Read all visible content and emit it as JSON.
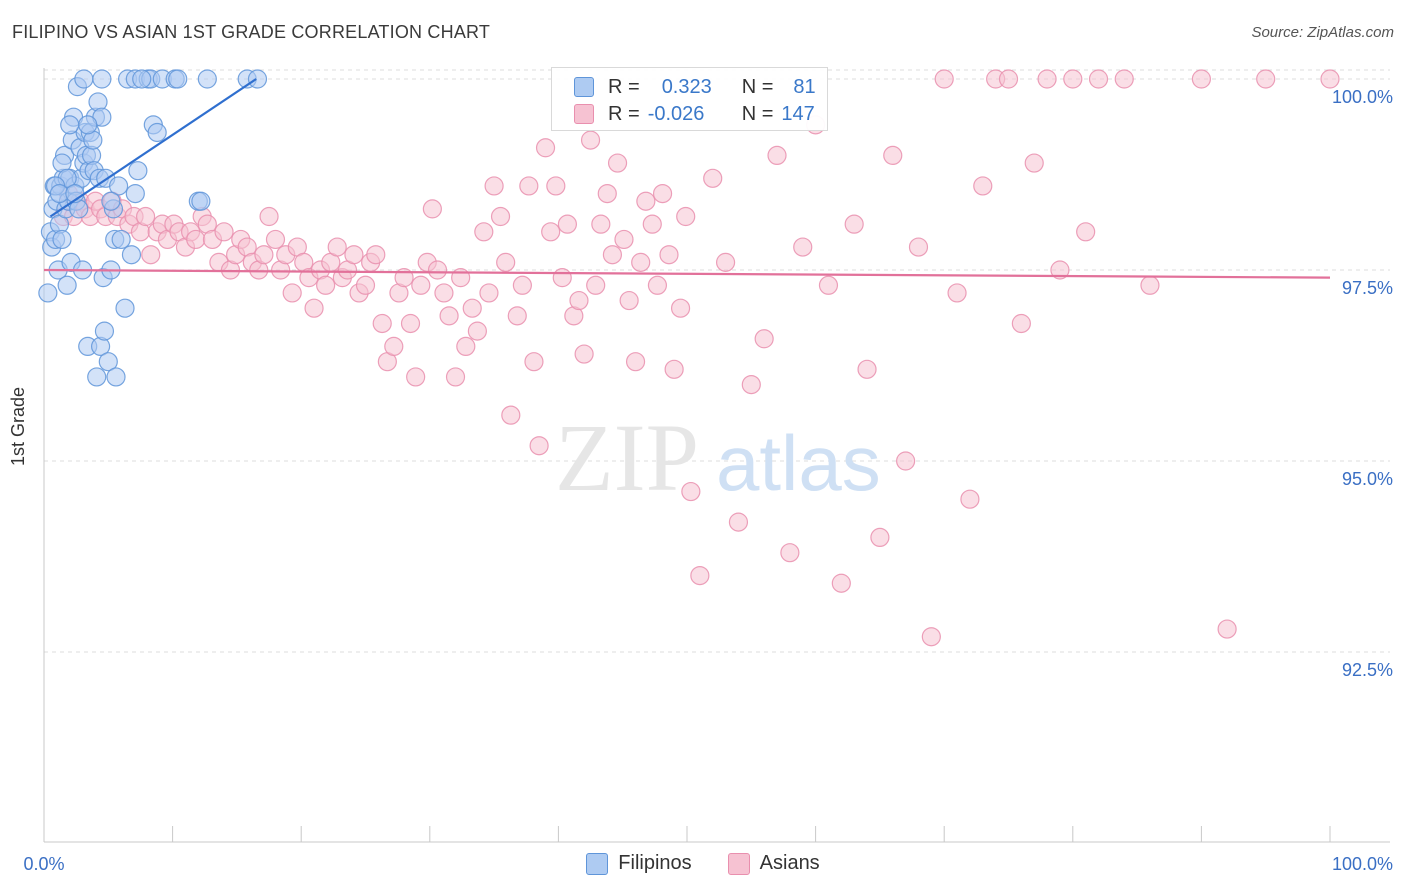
{
  "title": "FILIPINO VS ASIAN 1ST GRADE CORRELATION CHART",
  "source": "Source: ZipAtlas.com",
  "watermark": {
    "zip": "ZIP",
    "atlas": "atlas"
  },
  "legend": {
    "filipino": {
      "r_label": "R =",
      "r_value": "0.323",
      "n_label": "N =",
      "n_value": "81"
    },
    "asian": {
      "r_label": "R =",
      "r_value": "-0.026",
      "n_label": "N =",
      "n_value": "147"
    }
  },
  "bottom_legend": {
    "filipinos": "Filipinos",
    "asians": "Asians"
  },
  "colors": {
    "filipino_fill": "#aecbf2",
    "filipino_stroke": "#5f95d9",
    "filipino_line": "#2f6fcf",
    "asian_fill": "#f6c2d2",
    "asian_stroke": "#e98fae",
    "asian_line": "#e2719a",
    "tick_text": "#3a6fc4",
    "grid": "#dddddd"
  },
  "chart_data": {
    "type": "scatter",
    "title": "FILIPINO VS ASIAN 1ST GRADE CORRELATION CHART",
    "xlabel": "",
    "ylabel": "1st Grade",
    "xlim": [
      0,
      100
    ],
    "ylim": [
      90.0,
      100.45
    ],
    "x_tick_labels": [
      "0.0%",
      "100.0%"
    ],
    "y_ticks": [
      92.5,
      95.0,
      97.5,
      100.0
    ],
    "y_tick_labels": [
      "92.5%",
      "95.0%",
      "97.5%",
      "100.0%"
    ],
    "grid": true,
    "series": [
      {
        "name": "Filipinos",
        "trend": {
          "x": [
            0.5,
            16.5
          ],
          "y": [
            98.2,
            100.0
          ]
        },
        "points": [
          [
            0.3,
            97.2
          ],
          [
            0.5,
            98.0
          ],
          [
            0.6,
            97.8
          ],
          [
            0.7,
            98.3
          ],
          [
            0.8,
            98.6
          ],
          [
            0.9,
            97.9
          ],
          [
            1.0,
            98.4
          ],
          [
            1.1,
            97.5
          ],
          [
            1.2,
            98.1
          ],
          [
            1.3,
            98.6
          ],
          [
            1.4,
            97.9
          ],
          [
            1.5,
            98.7
          ],
          [
            1.6,
            99.0
          ],
          [
            1.7,
            98.3
          ],
          [
            1.8,
            97.3
          ],
          [
            1.9,
            98.4
          ],
          [
            2.0,
            98.7
          ],
          [
            2.1,
            97.6
          ],
          [
            2.2,
            99.2
          ],
          [
            2.3,
            99.5
          ],
          [
            2.4,
            98.6
          ],
          [
            2.5,
            98.4
          ],
          [
            2.6,
            99.9
          ],
          [
            2.7,
            98.3
          ],
          [
            2.8,
            99.1
          ],
          [
            2.9,
            98.7
          ],
          [
            3.0,
            97.5
          ],
          [
            3.1,
            98.9
          ],
          [
            3.2,
            99.3
          ],
          [
            3.3,
            99.0
          ],
          [
            3.4,
            96.5
          ],
          [
            3.5,
            98.8
          ],
          [
            3.6,
            99.3
          ],
          [
            3.7,
            99.0
          ],
          [
            3.8,
            99.2
          ],
          [
            3.9,
            98.8
          ],
          [
            4.0,
            99.5
          ],
          [
            4.1,
            96.1
          ],
          [
            4.2,
            99.7
          ],
          [
            4.3,
            98.7
          ],
          [
            4.4,
            96.5
          ],
          [
            4.5,
            99.5
          ],
          [
            4.6,
            97.4
          ],
          [
            4.7,
            96.7
          ],
          [
            4.8,
            98.7
          ],
          [
            5.0,
            96.3
          ],
          [
            5.2,
            97.5
          ],
          [
            5.4,
            98.3
          ],
          [
            5.5,
            97.9
          ],
          [
            5.6,
            96.1
          ],
          [
            5.8,
            98.6
          ],
          [
            6.0,
            97.9
          ],
          [
            6.3,
            97.0
          ],
          [
            6.5,
            100.0
          ],
          [
            6.8,
            97.7
          ],
          [
            7.1,
            100.0
          ],
          [
            3.1,
            100.0
          ],
          [
            3.4,
            99.4
          ],
          [
            2.0,
            99.4
          ],
          [
            1.4,
            98.9
          ],
          [
            1.8,
            98.7
          ],
          [
            4.5,
            100.0
          ],
          [
            5.2,
            98.4
          ],
          [
            0.9,
            98.6
          ],
          [
            1.2,
            98.5
          ],
          [
            2.4,
            98.5
          ],
          [
            8.1,
            100.0
          ],
          [
            8.3,
            100.0
          ],
          [
            9.2,
            100.0
          ],
          [
            10.2,
            100.0
          ],
          [
            10.4,
            100.0
          ],
          [
            7.6,
            100.0
          ],
          [
            8.5,
            99.4
          ],
          [
            8.8,
            99.3
          ],
          [
            7.1,
            98.5
          ],
          [
            7.3,
            98.8
          ],
          [
            12.0,
            98.4
          ],
          [
            12.2,
            98.4
          ],
          [
            15.8,
            100.0
          ],
          [
            12.7,
            100.0
          ],
          [
            16.6,
            100.0
          ]
        ]
      },
      {
        "name": "Asians",
        "trend": {
          "x": [
            0,
            100
          ],
          "y": [
            97.5,
            97.4
          ]
        },
        "points": [
          [
            1.5,
            98.2
          ],
          [
            1.9,
            98.5
          ],
          [
            2.3,
            98.2
          ],
          [
            2.8,
            98.4
          ],
          [
            3.2,
            98.3
          ],
          [
            3.6,
            98.2
          ],
          [
            4.0,
            98.4
          ],
          [
            4.4,
            98.3
          ],
          [
            4.8,
            98.2
          ],
          [
            5.3,
            98.4
          ],
          [
            5.7,
            98.2
          ],
          [
            6.1,
            98.3
          ],
          [
            6.6,
            98.1
          ],
          [
            7.0,
            98.2
          ],
          [
            7.5,
            98.0
          ],
          [
            7.9,
            98.2
          ],
          [
            8.3,
            97.7
          ],
          [
            8.8,
            98.0
          ],
          [
            9.2,
            98.1
          ],
          [
            9.6,
            97.9
          ],
          [
            10.1,
            98.1
          ],
          [
            10.5,
            98.0
          ],
          [
            11.0,
            97.8
          ],
          [
            11.4,
            98.0
          ],
          [
            11.8,
            97.9
          ],
          [
            12.3,
            98.2
          ],
          [
            12.7,
            98.1
          ],
          [
            13.1,
            97.9
          ],
          [
            13.6,
            97.6
          ],
          [
            14.0,
            98.0
          ],
          [
            14.5,
            97.5
          ],
          [
            14.9,
            97.7
          ],
          [
            15.3,
            97.9
          ],
          [
            15.8,
            97.8
          ],
          [
            16.2,
            97.6
          ],
          [
            16.7,
            97.5
          ],
          [
            17.1,
            97.7
          ],
          [
            17.5,
            98.2
          ],
          [
            18.0,
            97.9
          ],
          [
            18.4,
            97.5
          ],
          [
            18.8,
            97.7
          ],
          [
            19.3,
            97.2
          ],
          [
            19.7,
            97.8
          ],
          [
            20.2,
            97.6
          ],
          [
            20.6,
            97.4
          ],
          [
            21.0,
            97.0
          ],
          [
            21.5,
            97.5
          ],
          [
            21.9,
            97.3
          ],
          [
            22.3,
            97.6
          ],
          [
            22.8,
            97.8
          ],
          [
            23.2,
            97.4
          ],
          [
            23.6,
            97.5
          ],
          [
            24.1,
            97.7
          ],
          [
            24.5,
            97.2
          ],
          [
            25.0,
            97.3
          ],
          [
            25.4,
            97.6
          ],
          [
            25.8,
            97.7
          ],
          [
            26.3,
            96.8
          ],
          [
            26.7,
            96.3
          ],
          [
            27.2,
            96.5
          ],
          [
            27.6,
            97.2
          ],
          [
            28.0,
            97.4
          ],
          [
            28.5,
            96.8
          ],
          [
            28.9,
            96.1
          ],
          [
            29.3,
            97.3
          ],
          [
            29.8,
            97.6
          ],
          [
            30.2,
            98.3
          ],
          [
            30.6,
            97.5
          ],
          [
            31.1,
            97.2
          ],
          [
            31.5,
            96.9
          ],
          [
            32.0,
            96.1
          ],
          [
            32.4,
            97.4
          ],
          [
            32.8,
            96.5
          ],
          [
            33.3,
            97.0
          ],
          [
            33.7,
            96.7
          ],
          [
            34.2,
            98.0
          ],
          [
            34.6,
            97.2
          ],
          [
            35.0,
            98.6
          ],
          [
            35.5,
            98.2
          ],
          [
            35.9,
            97.6
          ],
          [
            36.3,
            95.6
          ],
          [
            36.8,
            96.9
          ],
          [
            37.2,
            97.3
          ],
          [
            37.7,
            98.6
          ],
          [
            38.1,
            96.3
          ],
          [
            38.5,
            95.2
          ],
          [
            39.0,
            99.1
          ],
          [
            39.4,
            98.0
          ],
          [
            39.8,
            98.6
          ],
          [
            40.3,
            97.4
          ],
          [
            40.7,
            98.1
          ],
          [
            41.2,
            96.9
          ],
          [
            41.6,
            97.1
          ],
          [
            42.0,
            96.4
          ],
          [
            42.5,
            99.2
          ],
          [
            42.9,
            97.3
          ],
          [
            43.3,
            98.1
          ],
          [
            43.8,
            98.5
          ],
          [
            44.2,
            97.7
          ],
          [
            44.6,
            98.9
          ],
          [
            45.1,
            97.9
          ],
          [
            45.5,
            97.1
          ],
          [
            46.0,
            96.3
          ],
          [
            46.4,
            97.6
          ],
          [
            46.8,
            98.4
          ],
          [
            47.3,
            98.1
          ],
          [
            47.7,
            97.3
          ],
          [
            48.1,
            98.5
          ],
          [
            48.6,
            97.7
          ],
          [
            49.0,
            96.2
          ],
          [
            49.5,
            97.0
          ],
          [
            49.9,
            98.2
          ],
          [
            50.3,
            94.6
          ],
          [
            51.0,
            93.5
          ],
          [
            52.0,
            98.7
          ],
          [
            53.0,
            97.6
          ],
          [
            54.0,
            94.2
          ],
          [
            55.0,
            96.0
          ],
          [
            56.0,
            96.6
          ],
          [
            57.0,
            99.0
          ],
          [
            58.0,
            93.8
          ],
          [
            59.0,
            97.8
          ],
          [
            60.0,
            99.4
          ],
          [
            61.0,
            97.3
          ],
          [
            62.0,
            93.4
          ],
          [
            63.0,
            98.1
          ],
          [
            64.0,
            96.2
          ],
          [
            65.0,
            94.0
          ],
          [
            66.0,
            99.0
          ],
          [
            67.0,
            95.0
          ],
          [
            68.0,
            97.8
          ],
          [
            69.0,
            92.7
          ],
          [
            70.0,
            100.0
          ],
          [
            71.0,
            97.2
          ],
          [
            72.0,
            94.5
          ],
          [
            73.0,
            98.6
          ],
          [
            74.0,
            100.0
          ],
          [
            75.0,
            100.0
          ],
          [
            76.0,
            96.8
          ],
          [
            77.0,
            98.9
          ],
          [
            78.0,
            100.0
          ],
          [
            79.0,
            97.5
          ],
          [
            80.0,
            100.0
          ],
          [
            81.0,
            98.0
          ],
          [
            82.0,
            100.0
          ],
          [
            84.0,
            100.0
          ],
          [
            86.0,
            97.3
          ],
          [
            90.0,
            100.0
          ],
          [
            95.0,
            100.0
          ],
          [
            100.0,
            100.0
          ],
          [
            92.0,
            92.8
          ]
        ]
      }
    ]
  }
}
